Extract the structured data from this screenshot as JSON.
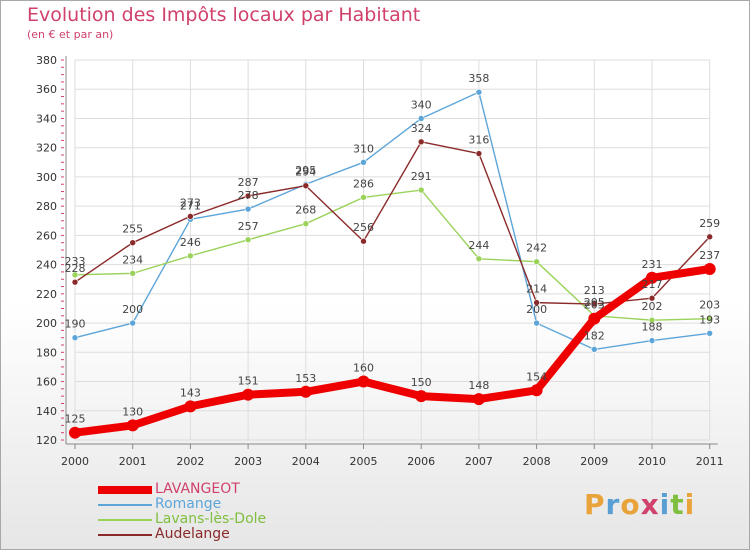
{
  "header": {
    "title": "Evolution des Impôts locaux par Habitant",
    "subtitle": "(en € et par an)"
  },
  "logo": {
    "text": "Proxiti",
    "letter_colors": [
      "#e8a33a",
      "#5a9fd4",
      "#e8a33a",
      "#d0416b",
      "#5a9fd4",
      "#7fbf3f",
      "#e8a33a"
    ]
  },
  "colors": {
    "grid": "#dddddd",
    "axis": "#888888",
    "tick_text": "#333333",
    "label_text": "#444444"
  },
  "chart_data": {
    "type": "line",
    "title": "Evolution des Impôts locaux par Habitant",
    "subtitle": "(en € et par an)",
    "xlabel": "",
    "ylabel": "",
    "ylim": [
      120,
      380
    ],
    "ytick_step": 20,
    "grid": true,
    "legend_position": "bottom-left",
    "categories": [
      "2000",
      "2001",
      "2002",
      "2003",
      "2004",
      "2005",
      "2006",
      "2007",
      "2008",
      "2009",
      "2010",
      "2011"
    ],
    "series": [
      {
        "name": "LAVANGEOT",
        "color": "#ee0000",
        "line_width": 8,
        "marker_radius": 6,
        "values": [
          125,
          130,
          143,
          151,
          153,
          160,
          150,
          148,
          154,
          203,
          231,
          237
        ],
        "labels": [
          "125",
          "130",
          "143",
          "151",
          "153",
          "160",
          "150",
          "148",
          "154",
          "203",
          "231",
          "237"
        ]
      },
      {
        "name": "Romange",
        "color": "#5da5d9",
        "line_width": 1.4,
        "marker_radius": 3,
        "values": [
          190,
          200,
          271,
          278,
          295,
          310,
          340,
          358,
          200,
          182,
          188,
          193
        ],
        "labels": [
          "190",
          "200",
          "271",
          "278",
          "295",
          "310",
          "340",
          "358",
          "200",
          "182",
          "188",
          "193"
        ]
      },
      {
        "name": "Lavans-lès-Dole",
        "color": "#9ad25a",
        "line_width": 1.4,
        "marker_radius": 3,
        "values": [
          233,
          234,
          246,
          257,
          268,
          286,
          291,
          244,
          242,
          205,
          202,
          203
        ],
        "labels": [
          "233",
          "234",
          "246",
          "257",
          "268",
          "286",
          "291",
          "244",
          "242",
          "205",
          "202",
          "203"
        ]
      },
      {
        "name": "Audelange",
        "color": "#8b2a2a",
        "line_width": 1.4,
        "marker_radius": 3,
        "values": [
          228,
          255,
          273,
          287,
          294,
          256,
          324,
          316,
          214,
          213,
          217,
          259
        ],
        "labels": [
          "228",
          "255",
          "273",
          "287",
          "294",
          "256",
          "324",
          "316",
          "214",
          "213",
          "217",
          "259"
        ]
      }
    ]
  }
}
